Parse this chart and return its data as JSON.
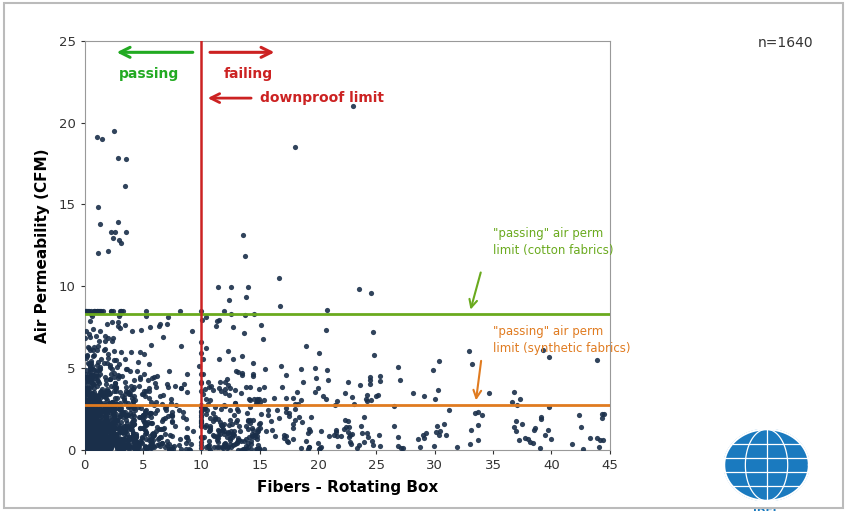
{
  "xlabel": "Fibers - Rotating Box",
  "ylabel": "Air Permeability (CFM)",
  "xlim": [
    0,
    45
  ],
  "ylim": [
    0,
    25
  ],
  "xticks": [
    0,
    5,
    10,
    15,
    20,
    25,
    30,
    35,
    40,
    45
  ],
  "yticks": [
    0,
    5,
    10,
    15,
    20,
    25
  ],
  "vertical_line_x": 10,
  "hline_cotton_y": 8.3,
  "hline_synthetic_y": 2.75,
  "hline_cotton_color": "#6aaa1e",
  "hline_synthetic_color": "#e07b20",
  "vertical_line_color": "#cc2222",
  "dot_color": "#1a2f4a",
  "n_label": "n=1640",
  "passing_label": "passing",
  "failing_label": "failing",
  "downproof_label": "downproof limit",
  "cotton_label": "\"passing\" air perm\nlimit (cotton fabrics)",
  "synthetic_label": "\"passing\" air perm\nlimit (synthetic fabrics)",
  "passing_color": "#22aa22",
  "failing_color": "#cc2222",
  "background_color": "#ffffff",
  "border_color": "#cccccc",
  "seed": 42
}
